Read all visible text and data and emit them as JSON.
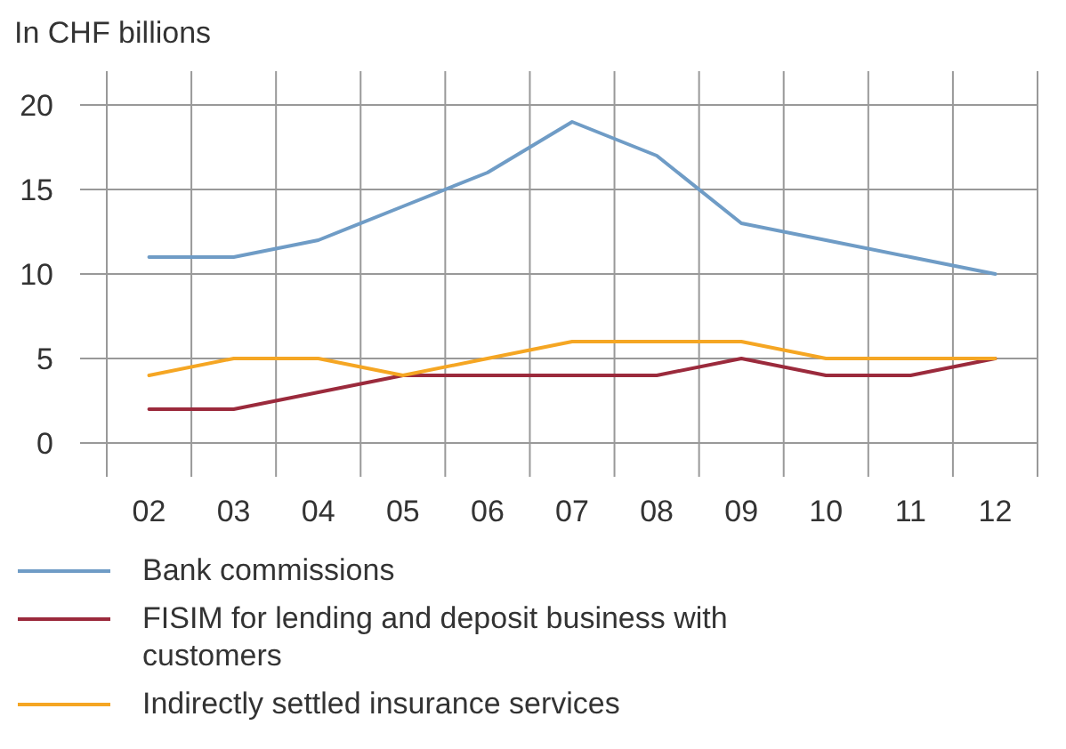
{
  "chart_data": {
    "type": "line",
    "ylabel": "In CHF billions",
    "categories": [
      "02",
      "03",
      "04",
      "05",
      "06",
      "07",
      "08",
      "09",
      "10",
      "11",
      "12"
    ],
    "series": [
      {
        "name": "Bank commissions",
        "color": "#6f9cc6",
        "values": [
          11,
          11,
          12,
          14,
          16,
          19,
          17,
          13,
          12,
          11,
          10
        ]
      },
      {
        "name": "FISIM for lending and deposit business with customers",
        "color": "#9b2a3c",
        "values": [
          2,
          2,
          3,
          4,
          4,
          4,
          4,
          5,
          4,
          4,
          5
        ]
      },
      {
        "name": "Indirectly settled insurance services",
        "color": "#f5a623",
        "values": [
          4,
          5,
          5,
          4,
          5,
          6,
          6,
          6,
          5,
          5,
          5
        ]
      }
    ],
    "ylim": [
      -2,
      22
    ],
    "yticks": [
      0,
      5,
      10,
      15,
      20
    ],
    "grid": true,
    "legend": "bottom",
    "marker": "none",
    "line_style": "solid"
  }
}
